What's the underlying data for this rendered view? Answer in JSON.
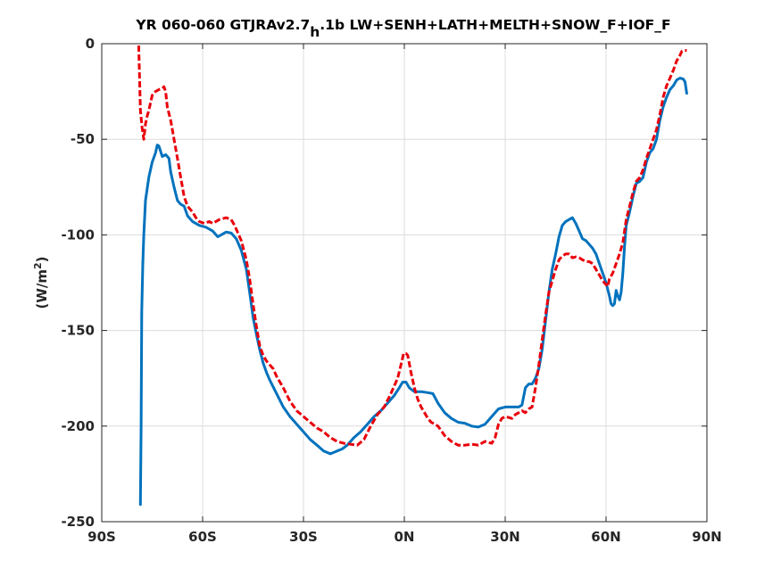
{
  "chart_data": {
    "type": "line",
    "title_parts": {
      "main": "YR 060-060 GTJRAv2.7",
      "sub": "h",
      "rest": ".1b LW+SENH+LATH+MELTH+SNOW_F+IOF_F"
    },
    "ylabel_parts": {
      "main": "(W/m",
      "sup": "2",
      "close": ")"
    },
    "xlim": [
      -90,
      90
    ],
    "ylim": [
      -250,
      0
    ],
    "xticks": [
      {
        "value": -90,
        "label": "90S"
      },
      {
        "value": -60,
        "label": "60S"
      },
      {
        "value": -30,
        "label": "30S"
      },
      {
        "value": 0,
        "label": "0N"
      },
      {
        "value": 30,
        "label": "30N"
      },
      {
        "value": 60,
        "label": "60N"
      },
      {
        "value": 90,
        "label": "90N"
      }
    ],
    "yticks": [
      {
        "value": -250,
        "label": "-250"
      },
      {
        "value": -200,
        "label": "-200"
      },
      {
        "value": -150,
        "label": "-150"
      },
      {
        "value": -100,
        "label": "-100"
      },
      {
        "value": -50,
        "label": "-50"
      },
      {
        "value": 0,
        "label": "0"
      }
    ],
    "grid": true,
    "series": [
      {
        "color": "#0072bd",
        "style": "solid",
        "points": [
          [
            -78.5,
            -241
          ],
          [
            -78.3,
            -200
          ],
          [
            -78.1,
            -140
          ],
          [
            -77.8,
            -115
          ],
          [
            -77.5,
            -100
          ],
          [
            -77,
            -82
          ],
          [
            -76,
            -70
          ],
          [
            -75,
            -62
          ],
          [
            -74,
            -57
          ],
          [
            -73.5,
            -53
          ],
          [
            -73,
            -53.5
          ],
          [
            -72,
            -59
          ],
          [
            -71,
            -58
          ],
          [
            -70,
            -60
          ],
          [
            -69.5,
            -67
          ],
          [
            -68.5,
            -75
          ],
          [
            -67.5,
            -82
          ],
          [
            -66.5,
            -84
          ],
          [
            -65.5,
            -85
          ],
          [
            -64.5,
            -90
          ],
          [
            -63,
            -93
          ],
          [
            -61,
            -95
          ],
          [
            -59,
            -96
          ],
          [
            -57,
            -98
          ],
          [
            -55.5,
            -101
          ],
          [
            -54.5,
            -100
          ],
          [
            -53,
            -98.5
          ],
          [
            -51.5,
            -99
          ],
          [
            -50,
            -102
          ],
          [
            -48.5,
            -108
          ],
          [
            -47,
            -118
          ],
          [
            -46,
            -130
          ],
          [
            -45,
            -143
          ],
          [
            -44,
            -152
          ],
          [
            -43,
            -160
          ],
          [
            -42,
            -167
          ],
          [
            -41,
            -172
          ],
          [
            -40,
            -176
          ],
          [
            -38,
            -183
          ],
          [
            -36,
            -190
          ],
          [
            -34,
            -195
          ],
          [
            -32,
            -199
          ],
          [
            -30,
            -203
          ],
          [
            -28,
            -207
          ],
          [
            -26,
            -210
          ],
          [
            -24,
            -213
          ],
          [
            -22,
            -214.5
          ],
          [
            -20,
            -213
          ],
          [
            -18.5,
            -212
          ],
          [
            -17,
            -210
          ],
          [
            -15,
            -206
          ],
          [
            -13,
            -203
          ],
          [
            -11,
            -199
          ],
          [
            -9,
            -195
          ],
          [
            -7,
            -192
          ],
          [
            -5,
            -188
          ],
          [
            -3,
            -184
          ],
          [
            -1.5,
            -180
          ],
          [
            -0.5,
            -177
          ],
          [
            0.5,
            -177
          ],
          [
            1.5,
            -180
          ],
          [
            3,
            -182
          ],
          [
            5,
            -182
          ],
          [
            7,
            -182.5
          ],
          [
            8.5,
            -183
          ],
          [
            10,
            -188
          ],
          [
            12,
            -193
          ],
          [
            14,
            -196
          ],
          [
            16,
            -198
          ],
          [
            18,
            -198.5
          ],
          [
            20,
            -200
          ],
          [
            22,
            -200.5
          ],
          [
            24,
            -199
          ],
          [
            26,
            -195
          ],
          [
            28,
            -191
          ],
          [
            30,
            -190
          ],
          [
            32,
            -190
          ],
          [
            34,
            -190
          ],
          [
            35,
            -189
          ],
          [
            36,
            -180
          ],
          [
            37,
            -178
          ],
          [
            38,
            -178
          ],
          [
            39,
            -175
          ],
          [
            40,
            -170
          ],
          [
            41,
            -160
          ],
          [
            42,
            -145
          ],
          [
            43,
            -130
          ],
          [
            44,
            -118
          ],
          [
            45,
            -110
          ],
          [
            46,
            -101
          ],
          [
            47,
            -95
          ],
          [
            48,
            -93
          ],
          [
            49,
            -92
          ],
          [
            50,
            -91
          ],
          [
            51,
            -94
          ],
          [
            52,
            -98
          ],
          [
            53,
            -102
          ],
          [
            54,
            -103
          ],
          [
            55,
            -105
          ],
          [
            56,
            -107
          ],
          [
            57,
            -110
          ],
          [
            58,
            -115
          ],
          [
            59,
            -120
          ],
          [
            60,
            -125
          ],
          [
            61,
            -132
          ],
          [
            61.5,
            -136
          ],
          [
            62,
            -137
          ],
          [
            62.5,
            -136
          ],
          [
            63,
            -129
          ],
          [
            63.5,
            -132
          ],
          [
            64,
            -134
          ],
          [
            64.5,
            -130
          ],
          [
            65,
            -120
          ],
          [
            65.5,
            -106
          ],
          [
            66,
            -95
          ],
          [
            67,
            -88
          ],
          [
            68,
            -80
          ],
          [
            69,
            -73
          ],
          [
            70,
            -72
          ],
          [
            71,
            -70
          ],
          [
            72,
            -62
          ],
          [
            73,
            -57
          ],
          [
            74,
            -55
          ],
          [
            75,
            -50
          ],
          [
            76,
            -40
          ],
          [
            77,
            -33
          ],
          [
            78,
            -28
          ],
          [
            79,
            -24
          ],
          [
            80,
            -22
          ],
          [
            81,
            -19
          ],
          [
            82,
            -18
          ],
          [
            83,
            -18.5
          ],
          [
            83.5,
            -20
          ],
          [
            84,
            -26
          ]
        ]
      },
      {
        "color": "#e8000b",
        "style": "dashed",
        "points": [
          [
            -79,
            -1
          ],
          [
            -78.8,
            -15
          ],
          [
            -78.5,
            -35
          ],
          [
            -78,
            -44
          ],
          [
            -77.5,
            -50
          ],
          [
            -77,
            -42
          ],
          [
            -76.5,
            -38
          ],
          [
            -76,
            -35
          ],
          [
            -75,
            -27
          ],
          [
            -74,
            -25
          ],
          [
            -73,
            -24
          ],
          [
            -72,
            -23.5
          ],
          [
            -71.5,
            -22.5
          ],
          [
            -71,
            -25
          ],
          [
            -70.5,
            -33
          ],
          [
            -69.5,
            -40
          ],
          [
            -68.5,
            -50
          ],
          [
            -67.5,
            -60
          ],
          [
            -66.5,
            -70
          ],
          [
            -65.5,
            -80
          ],
          [
            -64.5,
            -85
          ],
          [
            -63,
            -88
          ],
          [
            -62,
            -91
          ],
          [
            -61,
            -93
          ],
          [
            -59.5,
            -94
          ],
          [
            -58,
            -93
          ],
          [
            -57,
            -94
          ],
          [
            -55,
            -92
          ],
          [
            -53,
            -91
          ],
          [
            -51.5,
            -92
          ],
          [
            -50.5,
            -95
          ],
          [
            -49.5,
            -99
          ],
          [
            -48.5,
            -103
          ],
          [
            -47,
            -113
          ],
          [
            -46,
            -123
          ],
          [
            -45,
            -136
          ],
          [
            -44,
            -148
          ],
          [
            -43,
            -158
          ],
          [
            -42,
            -163
          ],
          [
            -41,
            -166
          ],
          [
            -40,
            -168
          ],
          [
            -39,
            -170
          ],
          [
            -38,
            -174
          ],
          [
            -36,
            -180
          ],
          [
            -34,
            -187
          ],
          [
            -32,
            -192
          ],
          [
            -30,
            -195
          ],
          [
            -28,
            -198
          ],
          [
            -26,
            -201
          ],
          [
            -24,
            -203
          ],
          [
            -22,
            -206
          ],
          [
            -20,
            -208
          ],
          [
            -18,
            -209
          ],
          [
            -16,
            -209.5
          ],
          [
            -14,
            -210
          ],
          [
            -12,
            -207
          ],
          [
            -10,
            -200
          ],
          [
            -8,
            -194
          ],
          [
            -6,
            -190
          ],
          [
            -4,
            -183
          ],
          [
            -2,
            -175
          ],
          [
            -1,
            -168
          ],
          [
            -0.2,
            -162
          ],
          [
            0.5,
            -162
          ],
          [
            1,
            -163
          ],
          [
            2,
            -172
          ],
          [
            3,
            -180
          ],
          [
            4,
            -186
          ],
          [
            5,
            -190
          ],
          [
            6,
            -193
          ],
          [
            7,
            -196
          ],
          [
            8,
            -198
          ],
          [
            10,
            -200
          ],
          [
            12,
            -205
          ],
          [
            14,
            -208
          ],
          [
            16,
            -210
          ],
          [
            18,
            -210
          ],
          [
            20,
            -209.5
          ],
          [
            22,
            -210
          ],
          [
            24,
            -208
          ],
          [
            26,
            -209
          ],
          [
            27,
            -206
          ],
          [
            28,
            -199
          ],
          [
            29,
            -196
          ],
          [
            30,
            -195
          ],
          [
            32,
            -196
          ],
          [
            33,
            -194
          ],
          [
            34,
            -193
          ],
          [
            35,
            -192
          ],
          [
            36,
            -193
          ],
          [
            37,
            -191
          ],
          [
            38,
            -190
          ],
          [
            39,
            -180
          ],
          [
            40,
            -168
          ],
          [
            41,
            -155
          ],
          [
            42,
            -142
          ],
          [
            43,
            -130
          ],
          [
            44,
            -124
          ],
          [
            45,
            -118
          ],
          [
            46,
            -113
          ],
          [
            47,
            -111
          ],
          [
            48,
            -110
          ],
          [
            49,
            -110
          ],
          [
            50,
            -112
          ],
          [
            51,
            -111.5
          ],
          [
            52,
            -112
          ],
          [
            53,
            -113
          ],
          [
            54,
            -114
          ],
          [
            55,
            -114
          ],
          [
            56,
            -115
          ],
          [
            57,
            -118
          ],
          [
            58,
            -121
          ],
          [
            59,
            -124
          ],
          [
            60,
            -126
          ],
          [
            60.5,
            -127
          ],
          [
            61,
            -123
          ],
          [
            62,
            -120
          ],
          [
            63,
            -115
          ],
          [
            64,
            -110
          ],
          [
            65,
            -104
          ],
          [
            66,
            -92
          ],
          [
            67,
            -85
          ],
          [
            68,
            -78
          ],
          [
            69,
            -72
          ],
          [
            70,
            -70
          ],
          [
            71,
            -66
          ],
          [
            72,
            -60
          ],
          [
            73,
            -55
          ],
          [
            74,
            -50
          ],
          [
            75,
            -45
          ],
          [
            76,
            -37
          ],
          [
            77,
            -28
          ],
          [
            78,
            -22
          ],
          [
            79,
            -18
          ],
          [
            80,
            -14
          ],
          [
            81,
            -9
          ],
          [
            82,
            -6
          ],
          [
            82.5,
            -4
          ],
          [
            83,
            -3.5
          ],
          [
            84,
            -3.5
          ]
        ]
      }
    ]
  }
}
